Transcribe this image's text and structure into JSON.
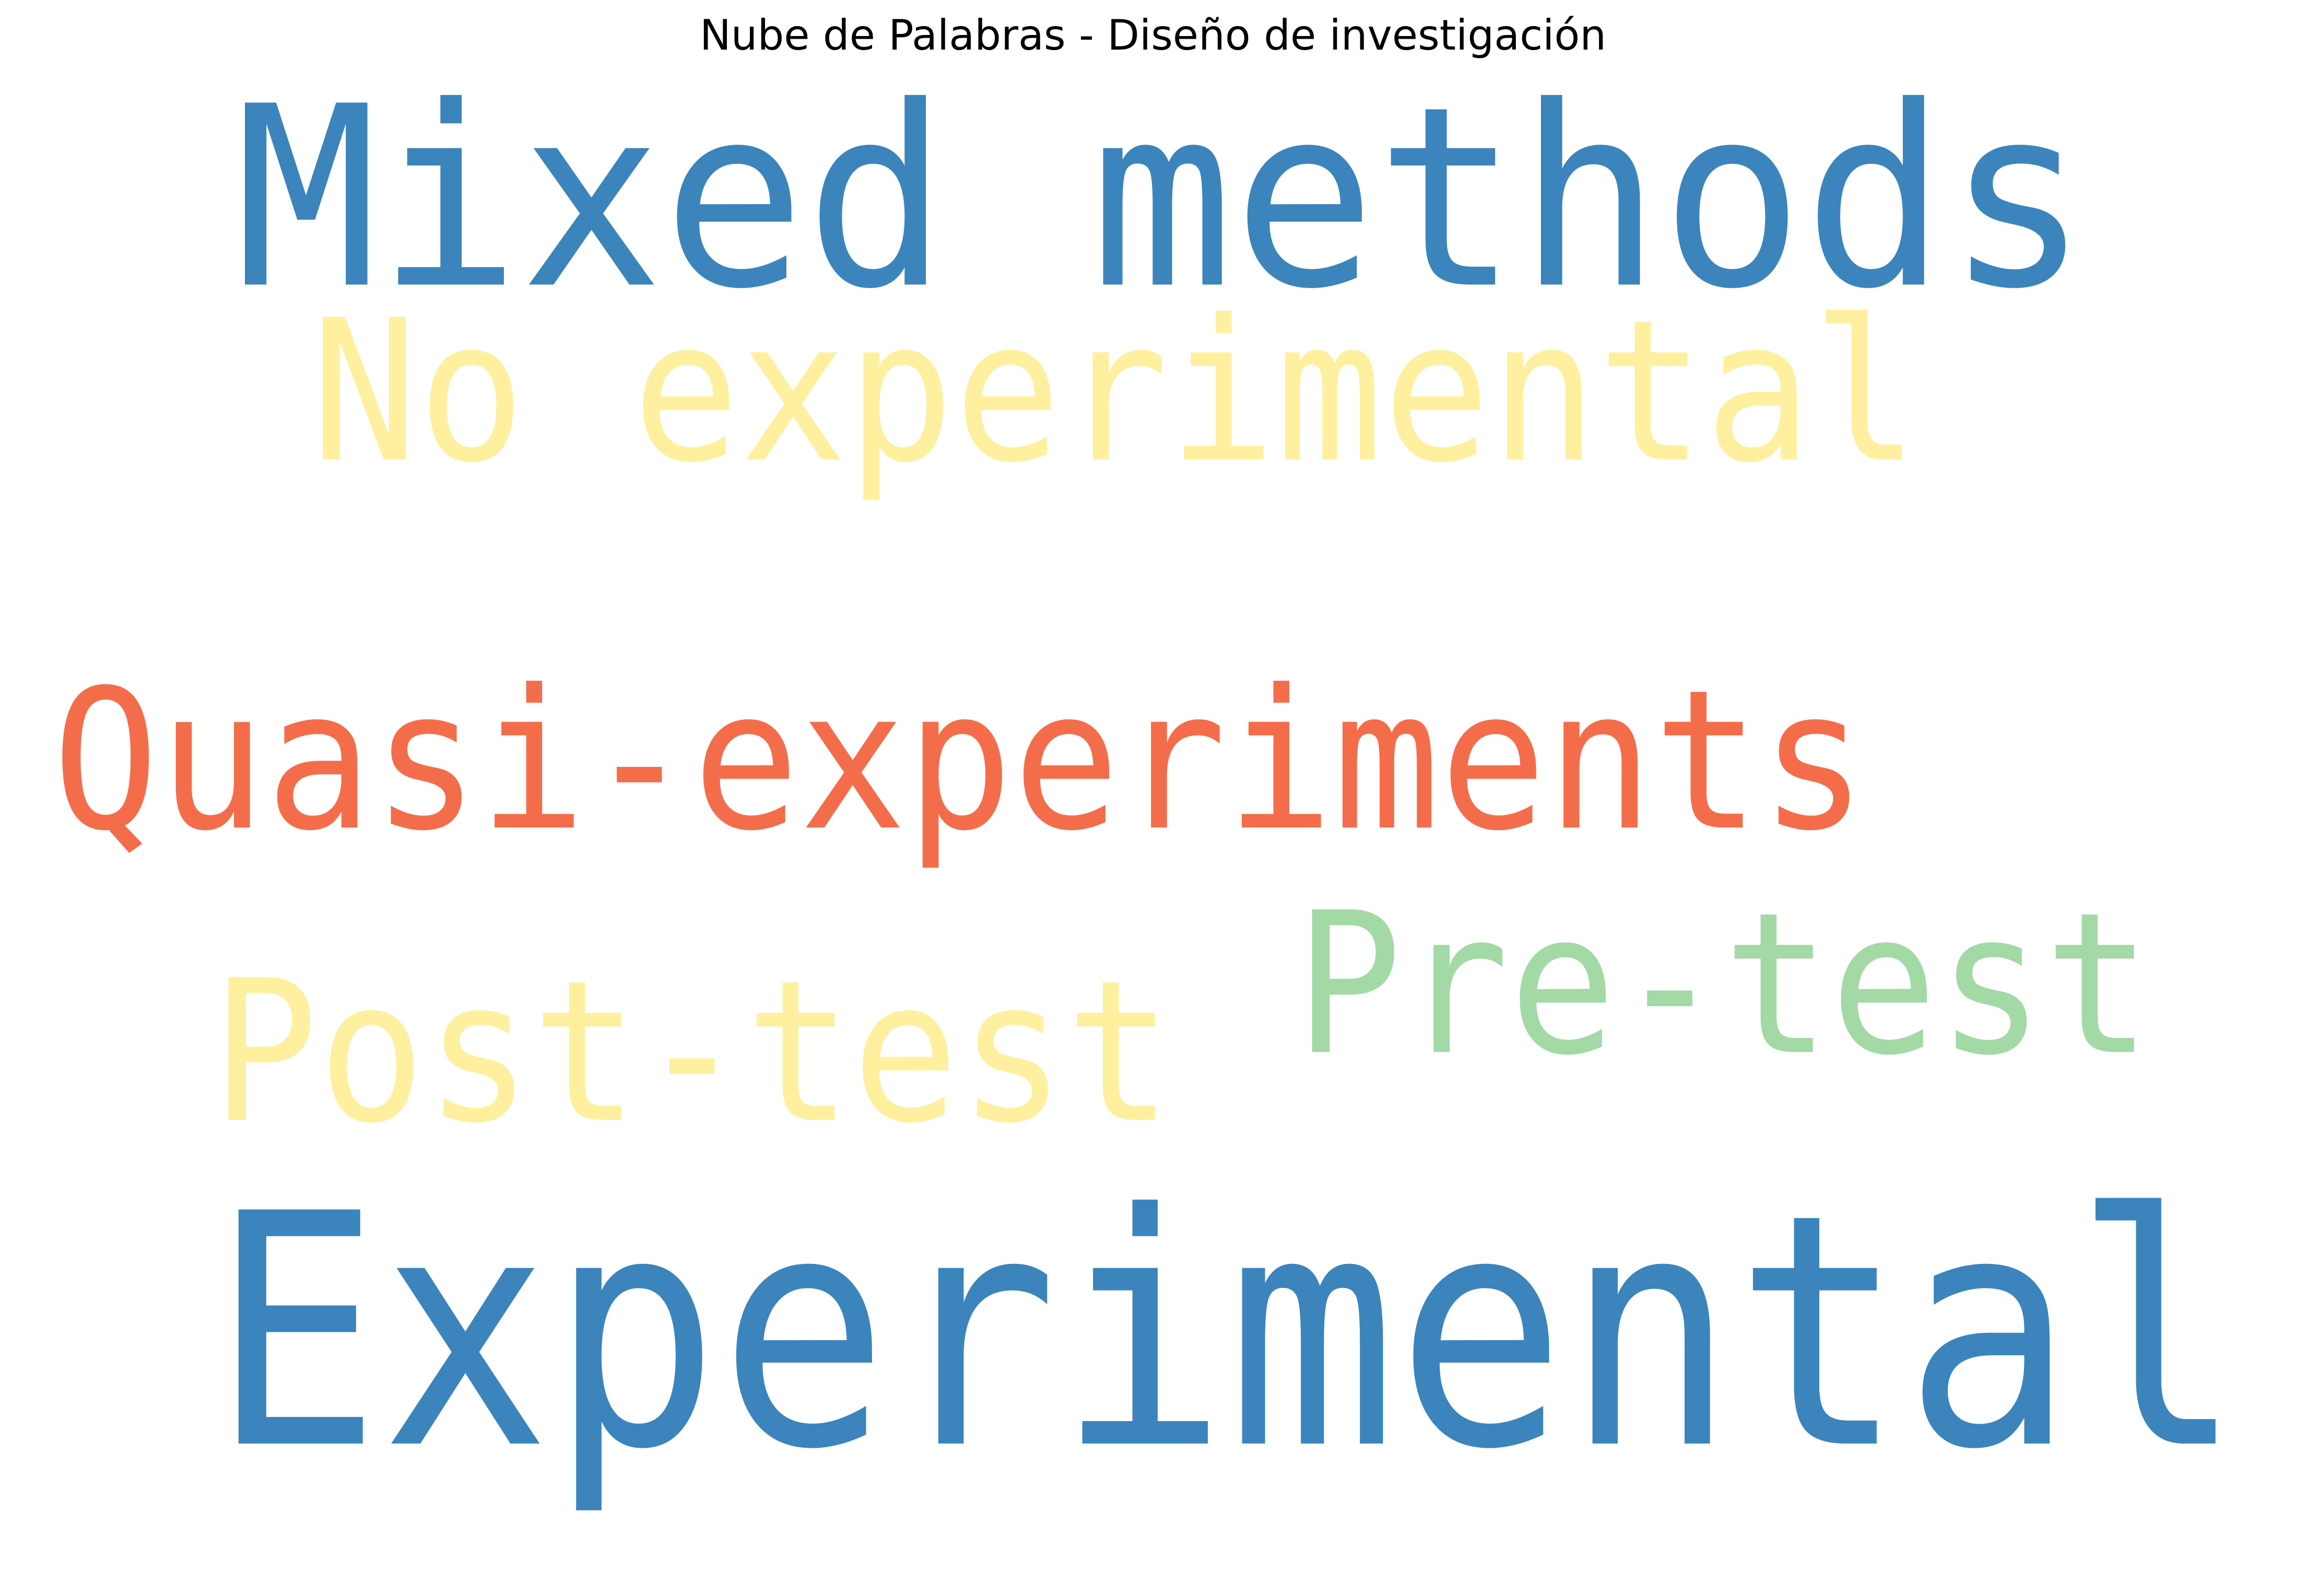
{
  "chart_data": {
    "type": "wordcloud",
    "title": "Nube de Palabras - Diseño de investigación",
    "words": [
      {
        "text": "Experimental",
        "color": "#3c84bc"
      },
      {
        "text": "Mixed methods",
        "color": "#3c84bc"
      },
      {
        "text": "Quasi-experiments",
        "color": "#f46d4b"
      },
      {
        "text": "No experimental",
        "color": "#fff0a0"
      },
      {
        "text": "Post-test",
        "color": "#fff0a0"
      },
      {
        "text": "Pre-test",
        "color": "#a2d9a4"
      }
    ]
  }
}
